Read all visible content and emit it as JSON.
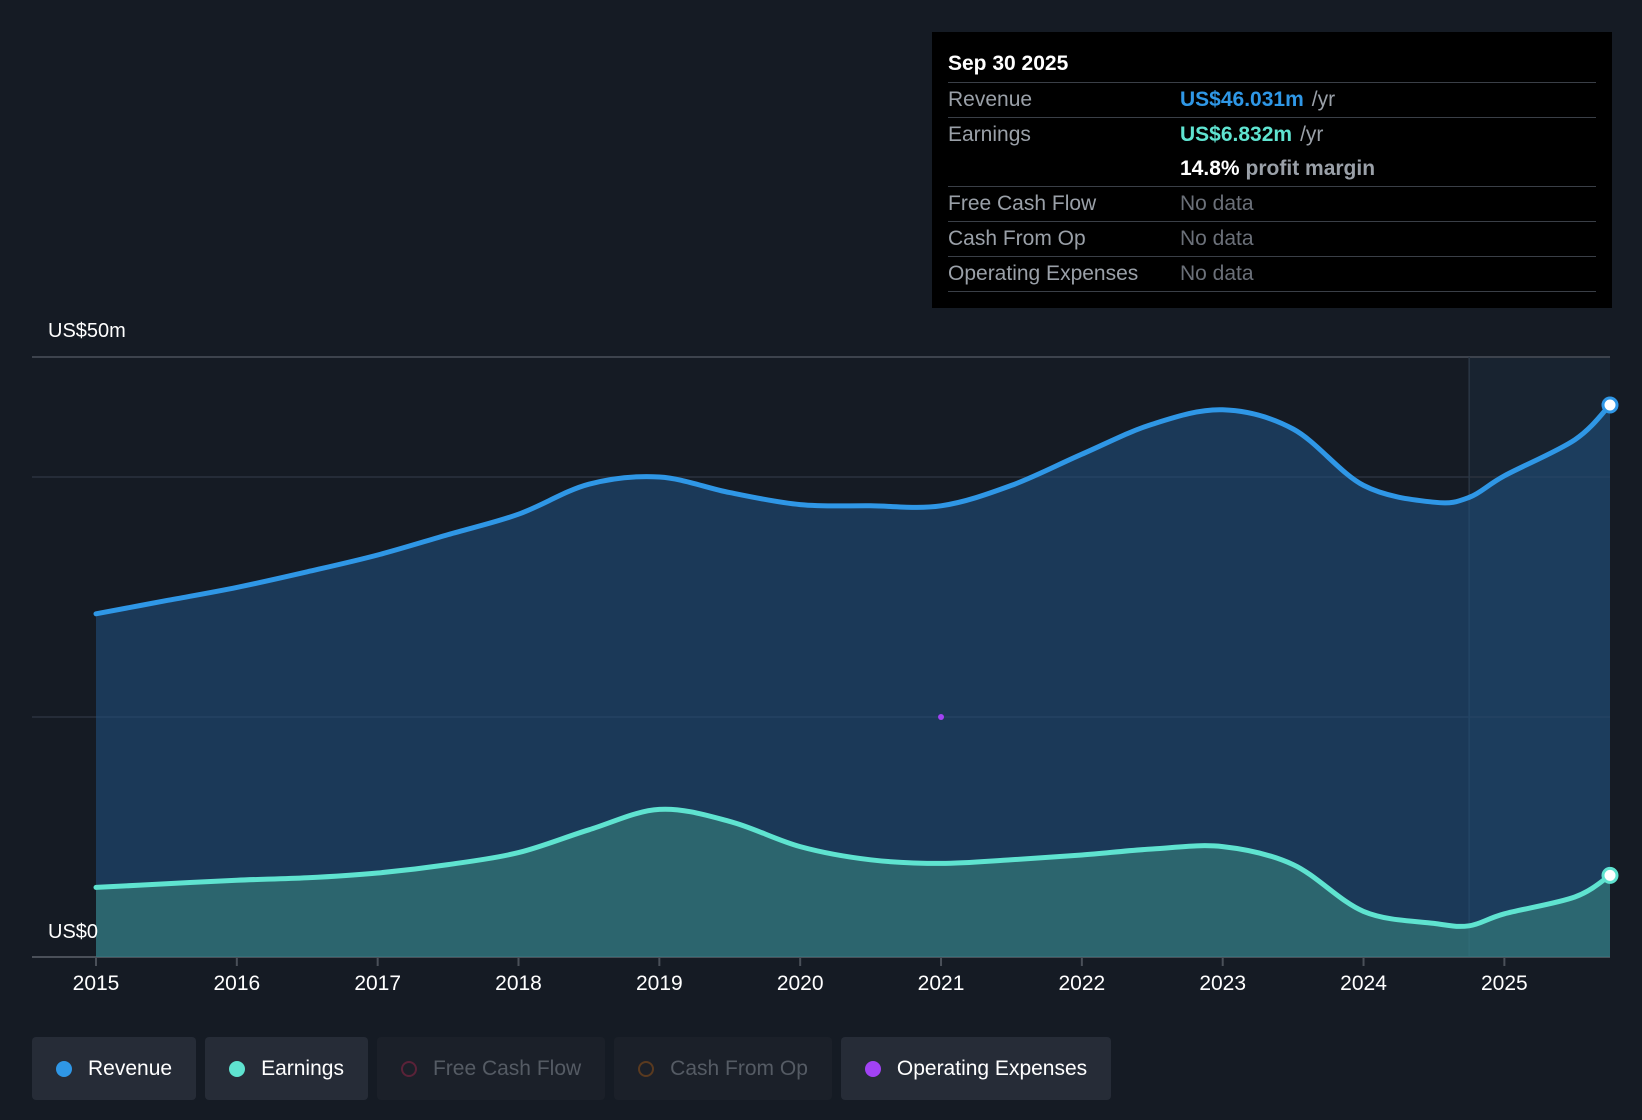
{
  "tooltip": {
    "date": "Sep 30 2025",
    "revenue_label": "Revenue",
    "revenue_value": "US$46.031m",
    "revenue_unit": "/yr",
    "earnings_label": "Earnings",
    "earnings_value": "US$6.832m",
    "earnings_unit": "/yr",
    "margin_value": "14.8%",
    "margin_label": "profit margin",
    "fcf_label": "Free Cash Flow",
    "fcf_value": "No data",
    "cfo_label": "Cash From Op",
    "cfo_value": "No data",
    "opex_label": "Operating Expenses",
    "opex_value": "No data"
  },
  "legend": {
    "revenue": "Revenue",
    "earnings": "Earnings",
    "fcf": "Free Cash Flow",
    "cfo": "Cash From Op",
    "opex": "Operating Expenses"
  },
  "colors": {
    "revenue": "#2f97e6",
    "earnings": "#5fe3d0",
    "fcf": "#b5336b",
    "cfo": "#b06a2b",
    "opex": "#a142f4",
    "background": "#151b24"
  },
  "chart_data": {
    "type": "area",
    "title": "",
    "y_top_label": "US$50m",
    "y_bottom_label": "US$0",
    "ylim": [
      0,
      50
    ],
    "xlim": [
      2015,
      2025.75
    ],
    "forecast_start": 2024.75,
    "x_ticks": [
      "2015",
      "2016",
      "2017",
      "2018",
      "2019",
      "2020",
      "2021",
      "2022",
      "2023",
      "2024",
      "2025"
    ],
    "series": [
      {
        "name": "Revenue",
        "unit": "US$m",
        "points": [
          [
            2015.0,
            28.6
          ],
          [
            2015.5,
            29.7
          ],
          [
            2016.0,
            30.8
          ],
          [
            2016.5,
            32.1
          ],
          [
            2017.0,
            33.5
          ],
          [
            2017.5,
            35.2
          ],
          [
            2018.0,
            36.9
          ],
          [
            2018.5,
            39.4
          ],
          [
            2019.0,
            40.0
          ],
          [
            2019.5,
            38.7
          ],
          [
            2020.0,
            37.7
          ],
          [
            2020.5,
            37.6
          ],
          [
            2021.0,
            37.6
          ],
          [
            2021.5,
            39.3
          ],
          [
            2022.0,
            41.9
          ],
          [
            2022.5,
            44.4
          ],
          [
            2023.0,
            45.6
          ],
          [
            2023.5,
            44.0
          ],
          [
            2024.0,
            39.3
          ],
          [
            2024.5,
            37.9
          ],
          [
            2024.75,
            38.3
          ],
          [
            2025.0,
            40.1
          ],
          [
            2025.5,
            43.1
          ],
          [
            2025.75,
            46.0
          ]
        ]
      },
      {
        "name": "Earnings",
        "unit": "US$m",
        "points": [
          [
            2015.0,
            5.8
          ],
          [
            2015.5,
            6.1
          ],
          [
            2016.0,
            6.4
          ],
          [
            2016.5,
            6.6
          ],
          [
            2017.0,
            7.0
          ],
          [
            2017.5,
            7.7
          ],
          [
            2018.0,
            8.7
          ],
          [
            2018.5,
            10.6
          ],
          [
            2019.0,
            12.3
          ],
          [
            2019.5,
            11.3
          ],
          [
            2020.0,
            9.2
          ],
          [
            2020.5,
            8.1
          ],
          [
            2021.0,
            7.8
          ],
          [
            2021.5,
            8.1
          ],
          [
            2022.0,
            8.5
          ],
          [
            2022.5,
            9.0
          ],
          [
            2023.0,
            9.2
          ],
          [
            2023.5,
            7.7
          ],
          [
            2024.0,
            3.8
          ],
          [
            2024.5,
            2.8
          ],
          [
            2024.75,
            2.6
          ],
          [
            2025.0,
            3.6
          ],
          [
            2025.5,
            5.0
          ],
          [
            2025.75,
            6.8
          ]
        ]
      },
      {
        "name": "Operating Expenses",
        "unit": "US$m",
        "points": [
          [
            2021.0,
            20.0
          ]
        ]
      }
    ]
  }
}
